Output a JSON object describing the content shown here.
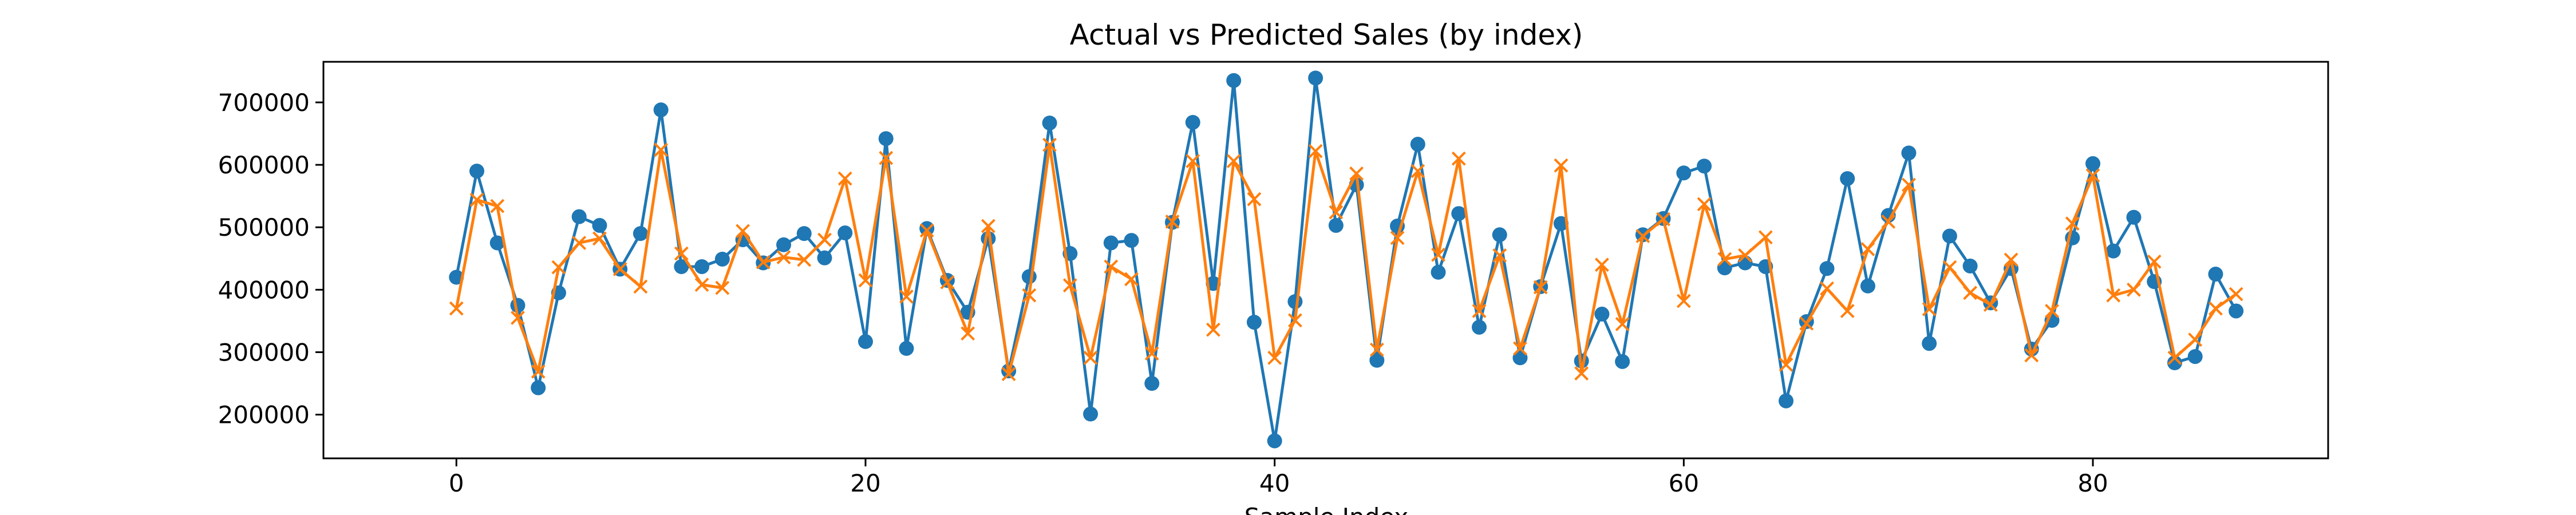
{
  "chart_data": {
    "type": "line",
    "title": "Actual vs Predicted Sales (by index)",
    "xlabel": "Sample Index",
    "ylabel": "",
    "xlim": [
      -6.5,
      91.5
    ],
    "ylim": [
      130000,
      765000
    ],
    "xticks": [
      0,
      20,
      40,
      60,
      80
    ],
    "yticks": [
      200000,
      300000,
      400000,
      500000,
      600000,
      700000
    ],
    "grid": false,
    "legend": "none",
    "x": [
      0,
      1,
      2,
      3,
      4,
      5,
      6,
      7,
      8,
      9,
      10,
      11,
      12,
      13,
      14,
      15,
      16,
      17,
      18,
      19,
      20,
      21,
      22,
      23,
      24,
      25,
      26,
      27,
      28,
      29,
      30,
      31,
      32,
      33,
      34,
      35,
      36,
      37,
      38,
      39,
      40,
      41,
      42,
      43,
      44,
      45,
      46,
      47,
      48,
      49,
      50,
      51,
      52,
      53,
      54,
      55,
      56,
      57,
      58,
      59,
      60,
      61,
      62,
      63,
      64,
      65,
      66,
      67,
      68,
      69,
      70,
      71,
      72,
      73,
      74,
      75,
      76,
      77,
      78,
      79,
      80,
      81,
      82,
      83,
      84,
      85,
      86,
      87
    ],
    "series": [
      {
        "color": "#1f77b4",
        "marker": "circle",
        "values": [
          420000,
          590000,
          475000,
          375000,
          243000,
          395000,
          517000,
          503000,
          433000,
          490000,
          688000,
          437000,
          437000,
          449000,
          480000,
          443000,
          472000,
          490000,
          451000,
          491000,
          317000,
          642000,
          306000,
          498000,
          415000,
          364000,
          482000,
          270000,
          421000,
          667000,
          458000,
          201000,
          475000,
          479000,
          250000,
          508000,
          668000,
          410000,
          735000,
          348000,
          158000,
          381000,
          739000,
          503000,
          568000,
          287000,
          502000,
          633000,
          428000,
          522000,
          340000,
          488000,
          291000,
          405000,
          506000,
          286000,
          361000,
          285000,
          488000,
          514000,
          587000,
          598000,
          435000,
          443000,
          437000,
          222000,
          349000,
          434000,
          578000,
          406000,
          519000,
          619000,
          314000,
          486000,
          438000,
          379000,
          434000,
          305000,
          351000,
          483000,
          602000,
          462000,
          516000,
          413000,
          283000,
          293000,
          425000,
          366000
        ]
      },
      {
        "color": "#ff7f0e",
        "marker": "x",
        "values": [
          370000,
          544000,
          534000,
          355000,
          269000,
          436000,
          475000,
          482000,
          433000,
          405000,
          624000,
          458000,
          408000,
          403000,
          494000,
          444000,
          452000,
          448000,
          480000,
          578000,
          415000,
          611000,
          389000,
          495000,
          412000,
          330000,
          502000,
          265000,
          391000,
          632000,
          407000,
          291000,
          437000,
          417000,
          298000,
          509000,
          606000,
          336000,
          606000,
          545000,
          291000,
          351000,
          622000,
          524000,
          586000,
          304000,
          483000,
          590000,
          456000,
          610000,
          366000,
          455000,
          306000,
          404000,
          599000,
          266000,
          440000,
          345000,
          486000,
          513000,
          382000,
          537000,
          449000,
          455000,
          484000,
          280000,
          346000,
          402000,
          366000,
          465000,
          509000,
          568000,
          369000,
          436000,
          395000,
          376000,
          448000,
          295000,
          366000,
          506000,
          583000,
          391000,
          400000,
          445000,
          291000,
          320000,
          370000,
          393000
        ]
      }
    ]
  }
}
